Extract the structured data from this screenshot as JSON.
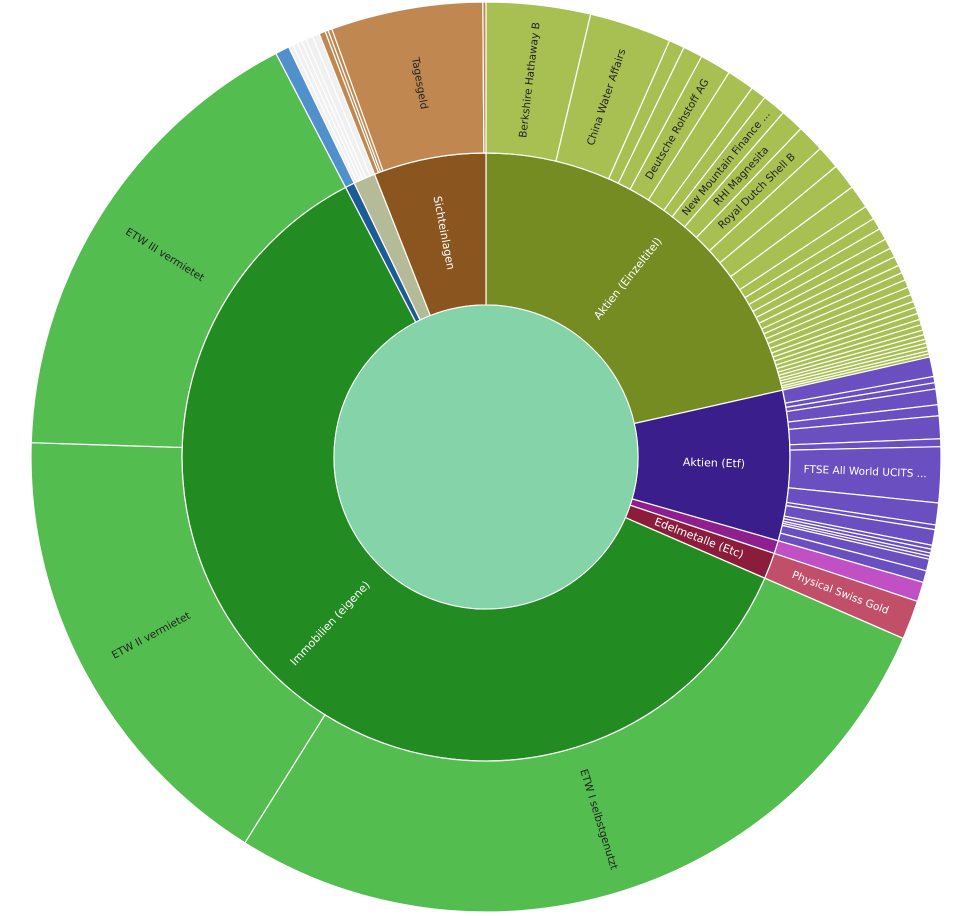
{
  "chart_data": {
    "type": "sunburst",
    "title": "",
    "center_color": "#85d4a9",
    "categories": [
      {
        "name": "Aktien (Einzeltitel)",
        "color": "#758c22",
        "child_color": "#a8c052",
        "label_color": "#ffffff",
        "children": [
          {
            "name": "Berkshire Hathaway B",
            "value": 13.3
          },
          {
            "name": "China Water Affairs",
            "value": 10.5
          },
          {
            "name": "",
            "value": 2
          },
          {
            "name": "",
            "value": 2.5
          },
          {
            "name": "Deutsche Rohstoff AG",
            "value": 4
          },
          {
            "name": "",
            "value": 3.5
          },
          {
            "name": "",
            "value": 2
          },
          {
            "name": "New Mountain Finance ...",
            "value": 3
          },
          {
            "name": "RHI Magnesita",
            "value": 3
          },
          {
            "name": "Royal Dutch Shell B",
            "value": 3.5
          },
          {
            "name": "",
            "value": 3
          },
          {
            "name": "",
            "value": 3.3
          },
          {
            "name": "",
            "value": 3
          },
          {
            "name": "",
            "value": 1.8
          },
          {
            "name": "",
            "value": 1.5
          },
          {
            "name": "",
            "value": 1.5
          },
          {
            "name": "",
            "value": 1.3
          },
          {
            "name": "",
            "value": 1.2
          },
          {
            "name": "",
            "value": 1.2
          },
          {
            "name": "",
            "value": 1
          },
          {
            "name": "",
            "value": 1
          },
          {
            "name": "",
            "value": 1
          },
          {
            "name": "",
            "value": 1
          },
          {
            "name": "",
            "value": 0.9
          },
          {
            "name": "",
            "value": 0.8
          },
          {
            "name": "",
            "value": 0.8
          },
          {
            "name": "",
            "value": 0.8
          },
          {
            "name": "",
            "value": 0.7
          },
          {
            "name": "",
            "value": 0.7
          },
          {
            "name": "",
            "value": 0.6
          },
          {
            "name": "",
            "value": 0.6
          },
          {
            "name": "",
            "value": 0.5
          },
          {
            "name": "",
            "value": 0.5
          },
          {
            "name": "",
            "value": 0.5
          },
          {
            "name": "",
            "value": 0.4
          },
          {
            "name": "",
            "value": 0.4
          }
        ]
      },
      {
        "name": "Aktien (Etf)",
        "color": "#3a1f8c",
        "child_color": "#6a4fc0",
        "label_color": "#ffffff",
        "children": [
          {
            "name": "",
            "value": 2.5
          },
          {
            "name": "",
            "value": 0.8
          },
          {
            "name": "",
            "value": 0.8
          },
          {
            "name": "",
            "value": 2
          },
          {
            "name": "",
            "value": 1.4
          },
          {
            "name": "",
            "value": 2.9
          },
          {
            "name": "",
            "value": 1
          },
          {
            "name": "FTSE All World UCITS ...",
            "value": 7.1
          },
          {
            "name": "",
            "value": 2.8
          },
          {
            "name": "",
            "value": 0.6
          },
          {
            "name": "",
            "value": 2
          },
          {
            "name": "",
            "value": 0.5
          },
          {
            "name": "",
            "value": 0.5
          },
          {
            "name": "",
            "value": 0.4
          },
          {
            "name": "",
            "value": 0.4
          },
          {
            "name": "",
            "value": 1.5
          },
          {
            "name": "",
            "value": 1.5
          }
        ]
      },
      {
        "name": "",
        "color": "#8e1f8c",
        "child_color": "#c050c4",
        "label_color": "#ffffff",
        "children": [
          {
            "name": "",
            "value": 2.5
          }
        ]
      },
      {
        "name": "Edelmetalle (Etc)",
        "color": "#8b1c3a",
        "child_color": "#c24f6a",
        "label_color": "#ffffff",
        "children": [
          {
            "name": "Physical Swiss Gold",
            "value": 5
          }
        ]
      },
      {
        "name": "Immobilien (eigene)",
        "color": "#228b22",
        "child_color": "#53bd50",
        "label_color": "#ffffff",
        "children": [
          {
            "name": "ETW I selbstgenutzt",
            "value": 98.5
          },
          {
            "name": "ETW II vermietet",
            "value": 59.8
          },
          {
            "name": "ETW III vermietet",
            "value": 60.7
          }
        ]
      },
      {
        "name": "",
        "color": "#1e5a96",
        "child_color": "#5090cc",
        "label_color": "#ffffff",
        "children": [
          {
            "name": "",
            "value": 1.8
          }
        ]
      },
      {
        "name": "",
        "color": "#b5bb96",
        "child_color": "#f0f0f0",
        "label_color": "#222222",
        "children": [
          {
            "name": "",
            "value": 0.6
          },
          {
            "name": "",
            "value": 0.6
          },
          {
            "name": "",
            "value": 0.6
          },
          {
            "name": "",
            "value": 0.6
          },
          {
            "name": "",
            "value": 0.9
          },
          {
            "name": "",
            "value": 0.9
          }
        ]
      },
      {
        "name": "Sichteinlagen",
        "color": "#8b5520",
        "child_color": "#c08850",
        "label_color": "#ffffff",
        "children": [
          {
            "name": "",
            "value": 0.8
          },
          {
            "name": "",
            "value": 0.4
          },
          {
            "name": "",
            "value": 0.5
          },
          {
            "name": "Tagesgeld",
            "value": 19.4
          },
          {
            "name": "",
            "value": 0.4
          }
        ]
      }
    ]
  }
}
